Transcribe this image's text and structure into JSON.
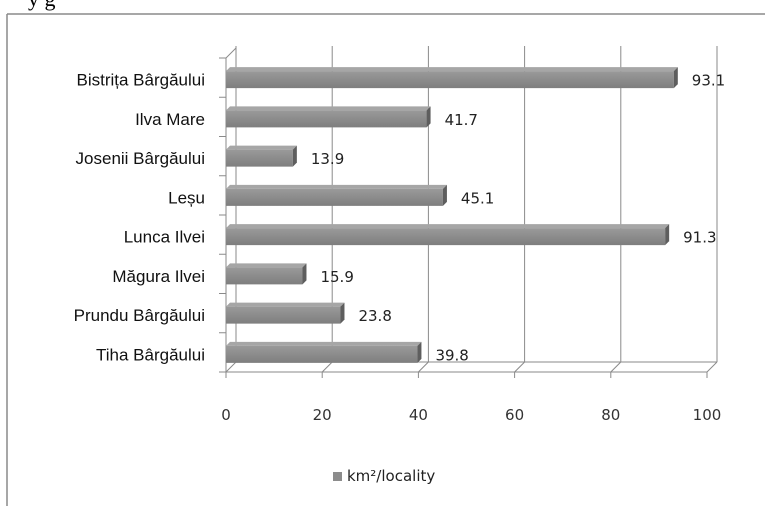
{
  "top_text_fragment": "y          g",
  "chart_data": {
    "type": "bar",
    "orientation": "horizontal",
    "categories": [
      "Bistrița Bârgăului",
      "Ilva Mare",
      "Josenii Bârgăului",
      "Leșu",
      "Lunca Ilvei",
      "Măgura Ilvei",
      "Prundu Bârgăului",
      "Tiha Bârgăului"
    ],
    "series": [
      {
        "name": "km²/locality",
        "values": [
          93.1,
          41.7,
          13.9,
          45.1,
          91.3,
          15.9,
          23.8,
          39.8
        ]
      }
    ],
    "data_labels": [
      "93.1",
      "41.7",
      "13.9",
      "45.1",
      "91.3",
      "15.9",
      "23.8",
      "39.8"
    ],
    "xticks": [
      "0",
      "20",
      "40",
      "60",
      "80",
      "100"
    ],
    "xlim": [
      0,
      100
    ],
    "title": "",
    "xlabel": "",
    "ylabel": "",
    "grid": true,
    "legend_position": "bottom",
    "bar_color": "#8c8c8c"
  }
}
